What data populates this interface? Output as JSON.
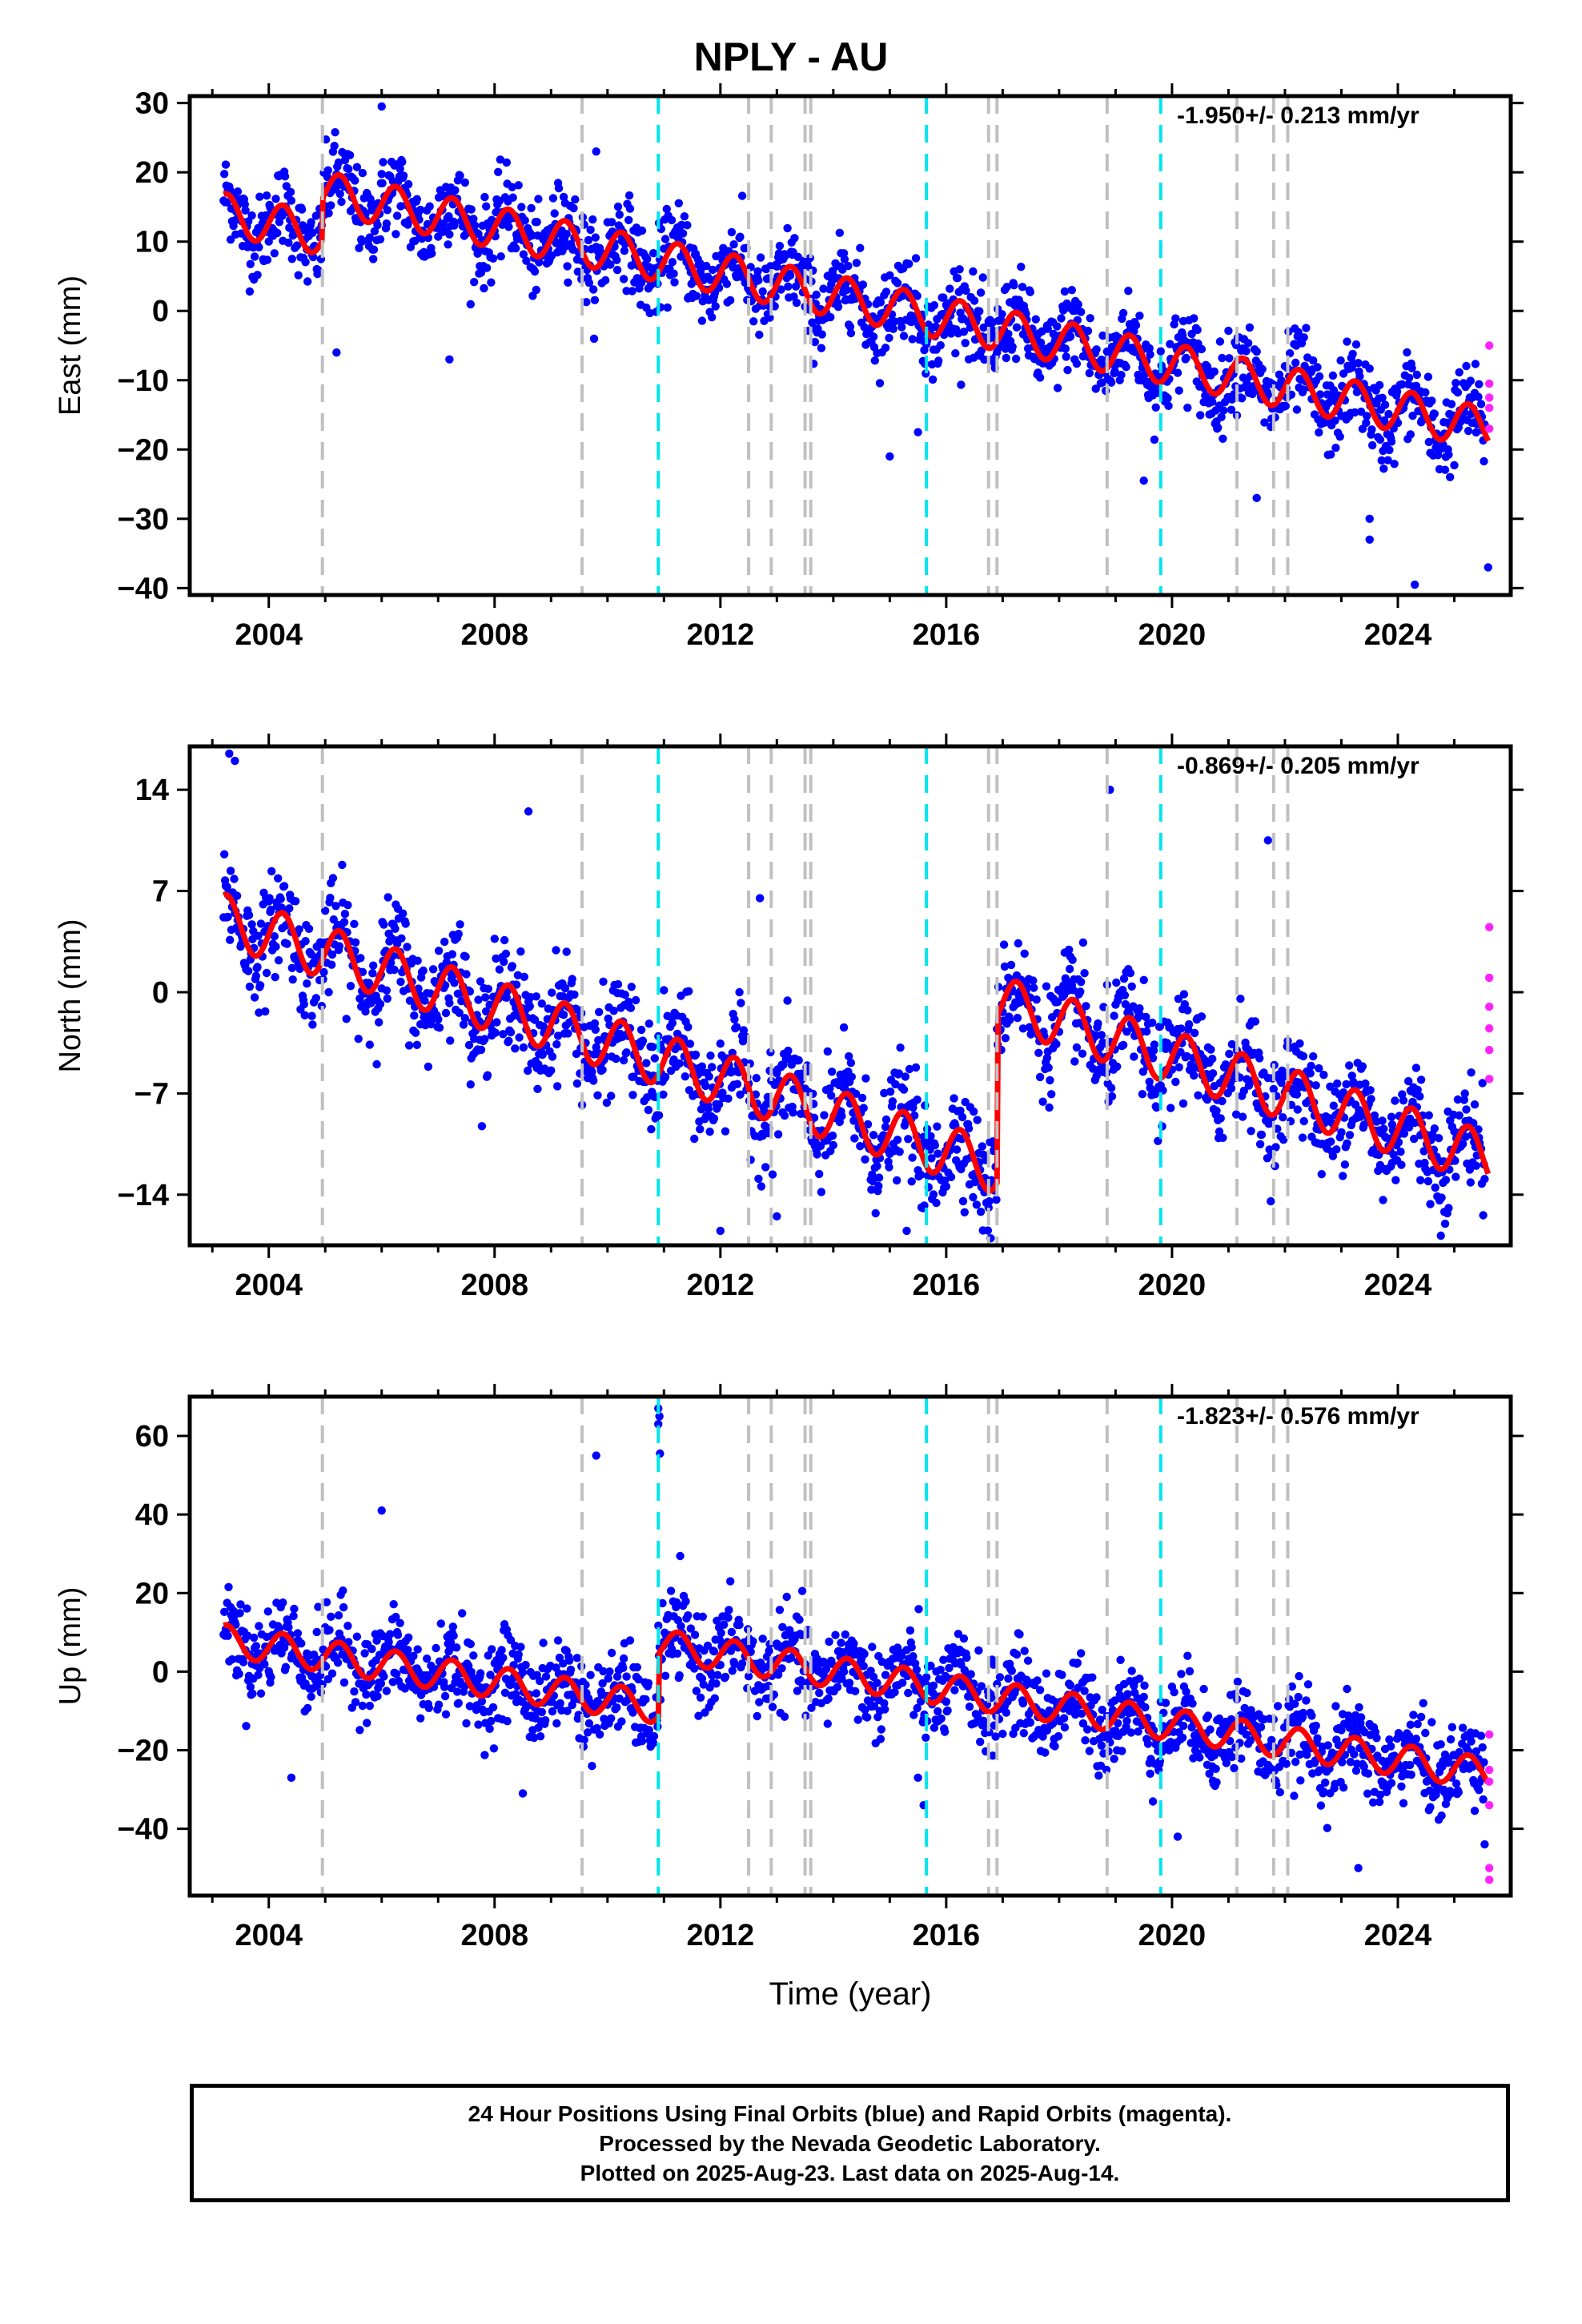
{
  "title": "NPLY - AU",
  "colors": {
    "final_orbit_points": "#0000ff",
    "rapid_orbit_points": "#ff22ff",
    "model_line": "#ff0000",
    "equipment_change_line": "#c0c0c0",
    "earthquake_line": "#00e5ee"
  },
  "caption": {
    "line1": "24 Hour Positions Using Final Orbits (blue) and Rapid Orbits (magenta).",
    "line2": "Processed by the Nevada Geodetic Laboratory.",
    "line3": "Plotted on 2025-Aug-23. Last data on 2025-Aug-14."
  },
  "chart_data": [
    {
      "type": "scatter",
      "component": "East",
      "ylabel": "East (mm)",
      "xlabel": "",
      "rate_annotation": "-1.950+/- 0.213 mm/yr",
      "xlim": [
        2002.6,
        2026.0
      ],
      "ylim": [
        -41,
        31
      ],
      "y_ticks": [
        30,
        20,
        10,
        0,
        -10,
        -20,
        -30,
        -40
      ],
      "y_tick_labels": [
        "30",
        "20",
        "10",
        "0",
        "−10",
        "−20",
        "−30",
        "−40"
      ],
      "x_ticks": [
        2004,
        2008,
        2012,
        2016,
        2020,
        2024
      ],
      "x_tick_labels": [
        "2004",
        "2008",
        "2012",
        "2016",
        "2020",
        "2024"
      ],
      "model": {
        "trend_start": 14.0,
        "trend_end": -17.0,
        "annual_amplitude": 3.0,
        "steps": [
          {
            "x": 2004.95,
            "dy": 6.0
          }
        ]
      },
      "scatter_sigma": 3.0,
      "outliers": [
        [
          2006.0,
          29.5
        ],
        [
          2005.2,
          -6.0
        ],
        [
          2007.2,
          -7.0
        ],
        [
          2009.8,
          23.0
        ],
        [
          2015.5,
          -17.5
        ],
        [
          2015.0,
          -21.0
        ],
        [
          2023.5,
          -30.0
        ],
        [
          2023.5,
          -33.0
        ],
        [
          2024.3,
          -39.5
        ],
        [
          2025.6,
          -37.0
        ],
        [
          2019.5,
          -24.5
        ],
        [
          2021.5,
          -27.0
        ]
      ],
      "rapid_points": [
        [
          2025.62,
          -5.0
        ],
        [
          2025.62,
          -10.5
        ],
        [
          2025.62,
          -12.5
        ],
        [
          2025.62,
          -14.0
        ],
        [
          2025.62,
          -17.0
        ]
      ]
    },
    {
      "type": "scatter",
      "component": "North",
      "ylabel": "North (mm)",
      "xlabel": "",
      "rate_annotation": "-0.869+/- 0.205 mm/yr",
      "xlim": [
        2002.6,
        2026.0
      ],
      "ylim": [
        -17.5,
        17
      ],
      "y_ticks": [
        14,
        7,
        0,
        -7,
        -14
      ],
      "y_tick_labels": [
        "14",
        "7",
        "0",
        "−7",
        "−14"
      ],
      "x_ticks": [
        2004,
        2008,
        2012,
        2016,
        2020,
        2024
      ],
      "x_tick_labels": [
        "2004",
        "2008",
        "2012",
        "2016",
        "2020",
        "2024"
      ],
      "model": {
        "trend_start": 5.0,
        "trend_end": -11.5,
        "annual_amplitude": 1.8,
        "steps": [
          {
            "x": 2016.9,
            "dy": 11.5
          }
        ]
      },
      "scatter_sigma": 1.8,
      "outliers": [
        [
          2003.3,
          16.5
        ],
        [
          2003.4,
          16.0
        ],
        [
          2008.6,
          12.5
        ],
        [
          2012.7,
          6.5
        ],
        [
          2012.0,
          -16.5
        ],
        [
          2013.0,
          -15.5
        ],
        [
          2015.3,
          -16.5
        ],
        [
          2018.9,
          14.0
        ],
        [
          2021.7,
          10.5
        ],
        [
          2023.9,
          -11.8
        ],
        [
          2024.4,
          -13.0
        ],
        [
          2025.2,
          -10.0
        ]
      ],
      "rapid_points": [
        [
          2025.62,
          4.5
        ],
        [
          2025.62,
          1.0
        ],
        [
          2025.62,
          -1.0
        ],
        [
          2025.62,
          -2.5
        ],
        [
          2025.62,
          -4.0
        ],
        [
          2025.62,
          -6.0
        ]
      ]
    },
    {
      "type": "scatter",
      "component": "Up",
      "ylabel": "Up (mm)",
      "xlabel": "Time (year)",
      "rate_annotation": "-1.823+/- 0.576 mm/yr",
      "xlim": [
        2002.6,
        2026.0
      ],
      "ylim": [
        -57,
        70
      ],
      "y_ticks": [
        60,
        40,
        20,
        0,
        -20,
        -40
      ],
      "y_tick_labels": [
        "60",
        "40",
        "20",
        "0",
        "−20",
        "−40"
      ],
      "x_ticks": [
        2004,
        2008,
        2012,
        2016,
        2020,
        2024
      ],
      "x_tick_labels": [
        "2004",
        "2008",
        "2012",
        "2016",
        "2020",
        "2024"
      ],
      "model": {
        "trend_start": 8.0,
        "trend_end": -26.0,
        "annual_amplitude": 4.0,
        "steps": [
          {
            "x": 2010.9,
            "dy": 16.0
          }
        ]
      },
      "scatter_sigma": 5.5,
      "outliers": [
        [
          2010.9,
          67.0
        ],
        [
          2010.92,
          65.0
        ],
        [
          2010.9,
          63.0
        ],
        [
          2010.93,
          55.5
        ],
        [
          2009.8,
          55.0
        ],
        [
          2006.0,
          41.0
        ],
        [
          2004.4,
          -27.0
        ],
        [
          2008.5,
          -31.0
        ],
        [
          2015.5,
          -27.0
        ],
        [
          2015.6,
          -34.0
        ],
        [
          2020.1,
          -42.0
        ],
        [
          2023.3,
          -50.0
        ]
      ],
      "rapid_points": [
        [
          2025.62,
          -16.0
        ],
        [
          2025.62,
          -25.0
        ],
        [
          2025.62,
          -28.0
        ],
        [
          2025.62,
          -34.0
        ],
        [
          2025.62,
          -50.0
        ],
        [
          2025.62,
          -53.0
        ]
      ]
    }
  ],
  "event_lines": {
    "equipment": [
      2004.95,
      2009.55,
      2012.5,
      2012.9,
      2013.5,
      2013.6,
      2016.75,
      2016.9,
      2018.85,
      2021.15,
      2021.8,
      2022.05
    ],
    "earthquake": [
      2010.9,
      2015.65,
      2019.8
    ]
  }
}
